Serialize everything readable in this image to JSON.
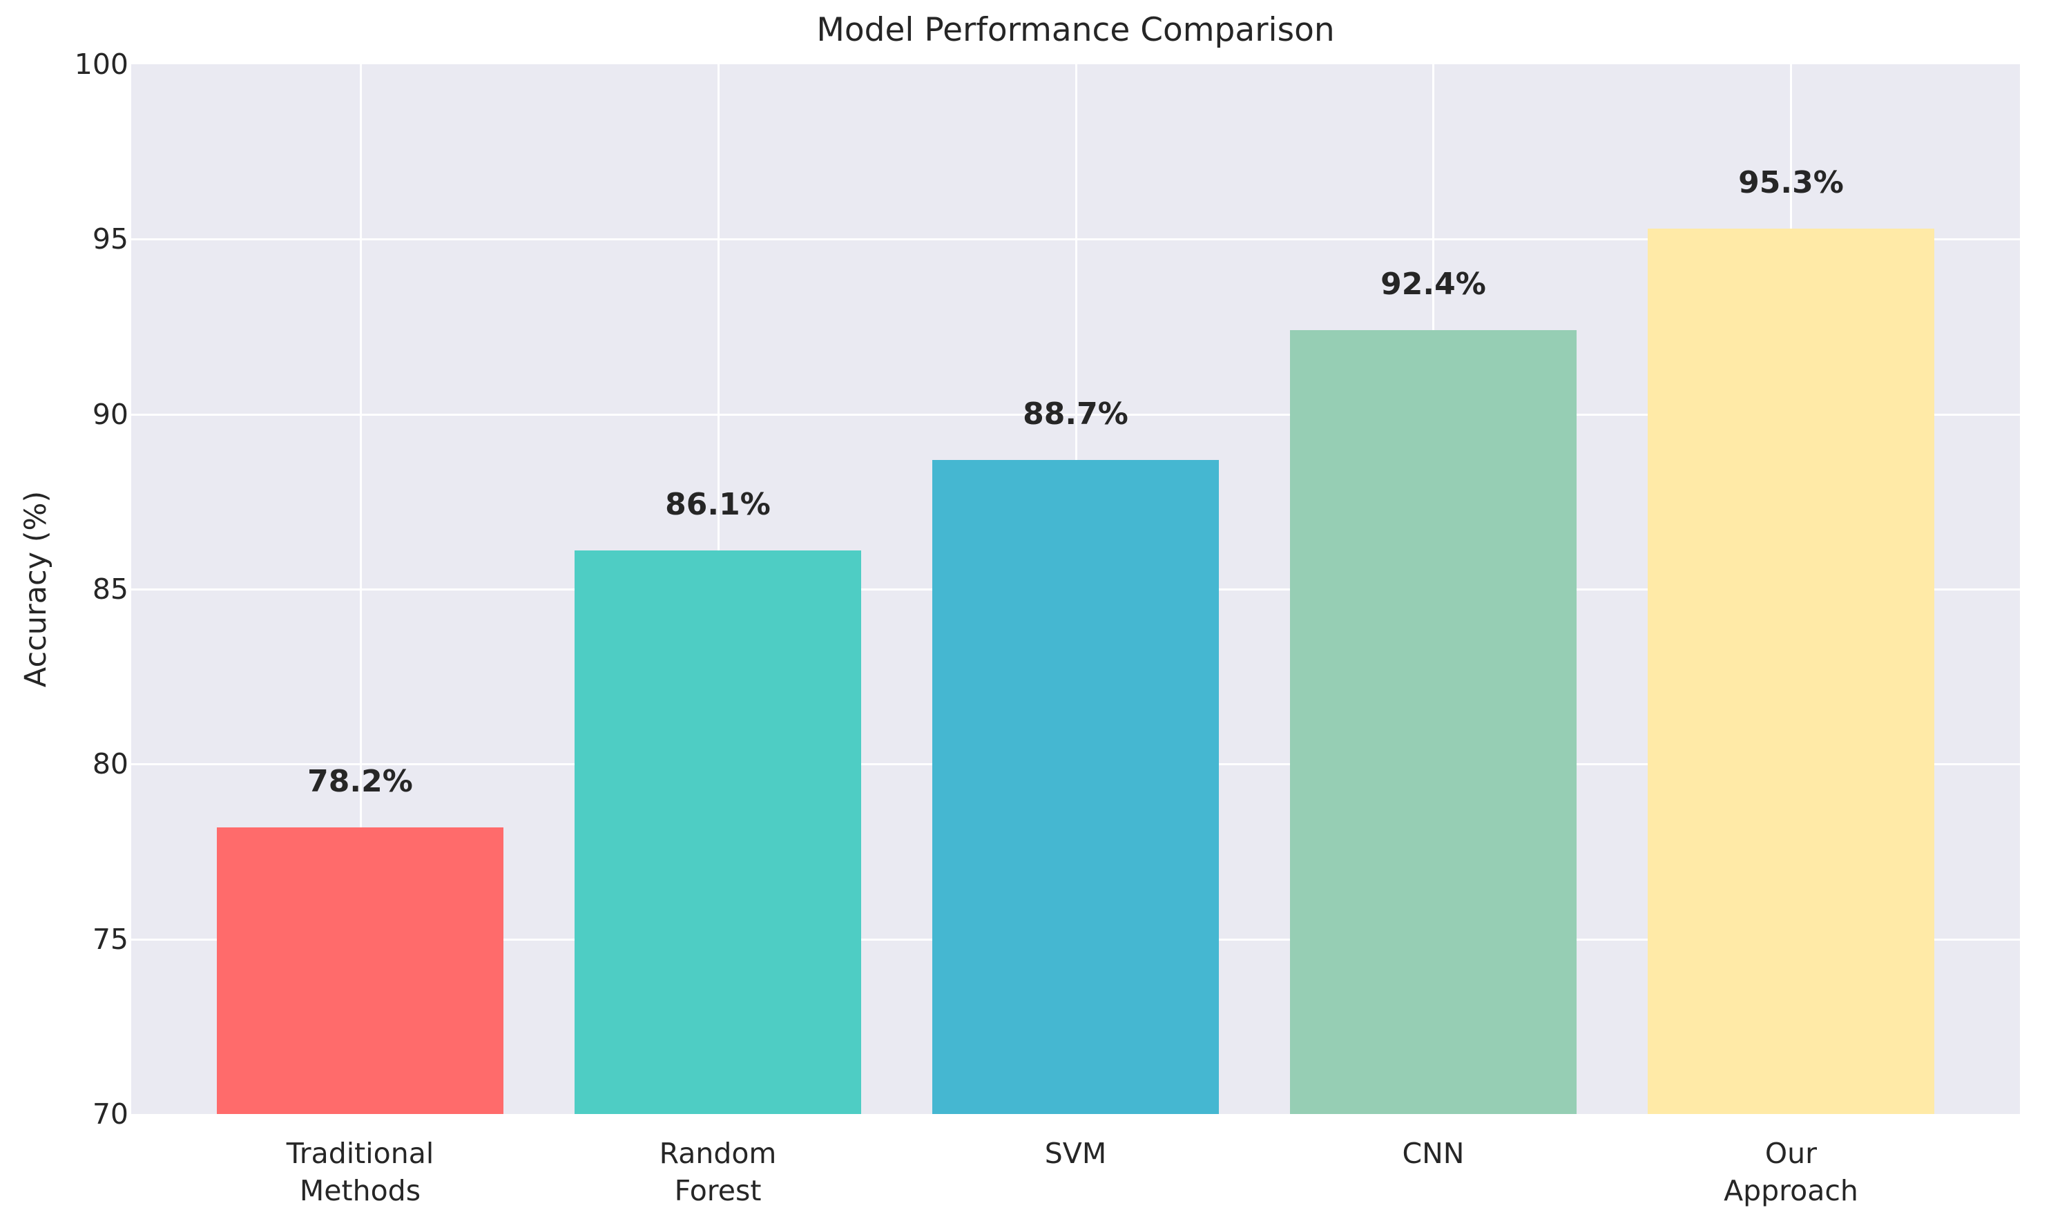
{
  "chart_data": {
    "type": "bar",
    "title": "Model Performance Comparison",
    "ylabel": "Accuracy (%)",
    "xlabel": "",
    "categories": [
      "Traditional\nMethods",
      "Random\nForest",
      "SVM",
      "CNN",
      "Our\nApproach"
    ],
    "values": [
      78.2,
      86.1,
      88.7,
      92.4,
      95.3
    ],
    "bar_labels": [
      "78.2%",
      "86.1%",
      "88.7%",
      "92.4%",
      "95.3%"
    ],
    "bar_colors": [
      "#FF6B6B",
      "#4ECDC4",
      "#45B7D1",
      "#96CEB4",
      "#FFEAA7"
    ],
    "ylim": [
      70,
      100
    ],
    "yticks": [
      70,
      75,
      80,
      85,
      90,
      95,
      100
    ],
    "grid": true,
    "legend_position": "none",
    "plot_background": "#EAEAF2",
    "gridline_color": "#FFFFFF",
    "text_color": "#262626"
  }
}
